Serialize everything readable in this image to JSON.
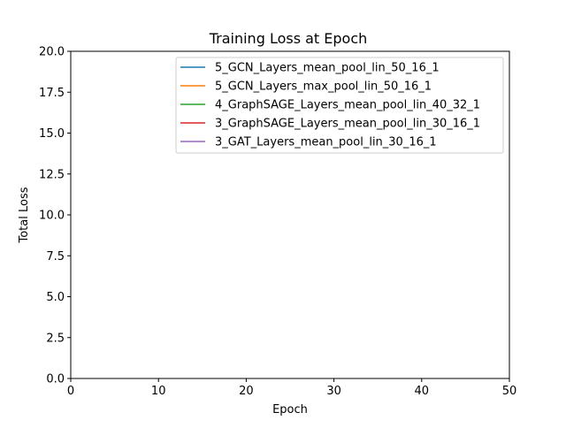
{
  "chart_data": {
    "type": "line",
    "title": "Training Loss at Epoch",
    "xlabel": "Epoch",
    "ylabel": "Total Loss",
    "xlim": [
      0,
      50
    ],
    "ylim": [
      0,
      20
    ],
    "xticks": [
      "0",
      "10",
      "20",
      "30",
      "40",
      "50"
    ],
    "yticks": [
      "0.0",
      "2.5",
      "5.0",
      "7.5",
      "10.0",
      "12.5",
      "15.0",
      "17.5",
      "20.0"
    ],
    "grid": false,
    "legend_position": "upper-right",
    "series": [
      {
        "name": "5_GCN_Layers_mean_pool_lin_50_16_1",
        "color": "#1f77b4",
        "x": [],
        "y": []
      },
      {
        "name": "5_GCN_Layers_max_pool_lin_50_16_1",
        "color": "#ff7f0e",
        "x": [],
        "y": []
      },
      {
        "name": "4_GraphSAGE_Layers_mean_pool_lin_40_32_1",
        "color": "#2ca02c",
        "x": [],
        "y": []
      },
      {
        "name": "3_GraphSAGE_Layers_mean_pool_lin_30_16_1",
        "color": "#d62728",
        "x": [],
        "y": []
      },
      {
        "name": "3_GAT_Layers_mean_pool_lin_30_16_1",
        "color": "#9467bd",
        "x": [],
        "y": []
      }
    ]
  }
}
